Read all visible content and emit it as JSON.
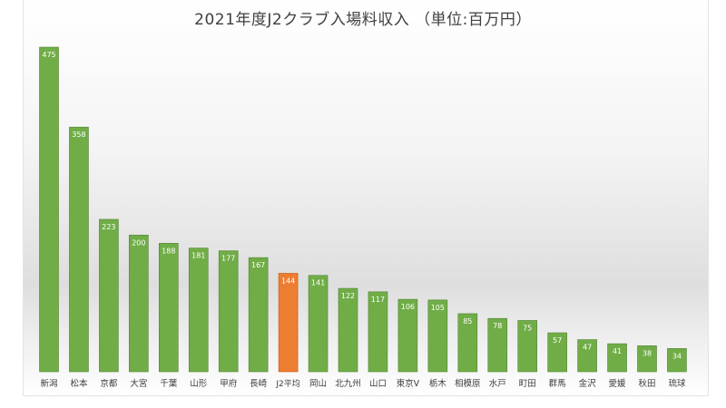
{
  "chart_data": {
    "type": "bar",
    "title": "2021年度J2クラブ入場料収入 （単位:百万円）",
    "xlabel": "",
    "ylabel": "",
    "ylim": [
      0,
      475
    ],
    "grid": false,
    "legend": "none",
    "categories": [
      "新潟",
      "松本",
      "京都",
      "大宮",
      "千葉",
      "山形",
      "甲府",
      "長崎",
      "J2平均",
      "岡山",
      "北九州",
      "山口",
      "東京V",
      "栃木",
      "相模原",
      "水戸",
      "町田",
      "群馬",
      "金沢",
      "愛媛",
      "秋田",
      "琉球"
    ],
    "values": [
      475,
      358,
      223,
      200,
      188,
      181,
      177,
      167,
      144,
      141,
      122,
      117,
      106,
      105,
      85,
      78,
      75,
      57,
      47,
      41,
      38,
      34
    ],
    "highlight_category": "J2平均",
    "colors": {
      "bar": "#70ad47",
      "bar_edge": "#548235",
      "highlight": "#ed7d31",
      "highlight_edge": "#c55a11",
      "label_text": "#ffffff",
      "axis_text": "#404040"
    }
  }
}
